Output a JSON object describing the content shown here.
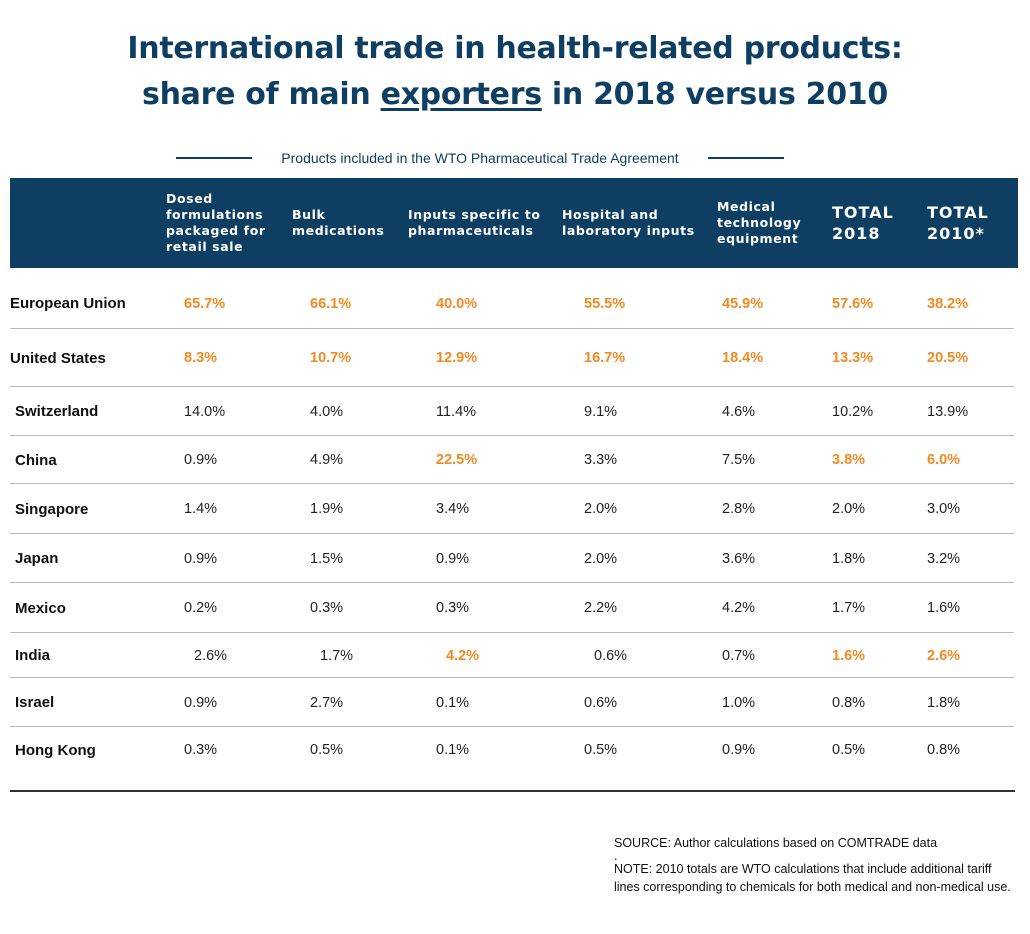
{
  "title": {
    "line1": "International trade in health-related products:",
    "line2_before": "share of main ",
    "line2_underlined": "exporters",
    "line2_after": " in 2018 versus 2010"
  },
  "subtitle": "Products included in the WTO Pharmaceutical Trade Agreement",
  "colors": {
    "header_bg": "#0e3f63",
    "highlight": "#f08a24",
    "title": "#0e3f63"
  },
  "chart_data": {
    "type": "table",
    "columns": [
      "Dosed\nformulations\npackaged for\nretail sale",
      "Bulk\nmedications",
      "Inputs specific to\npharmaceuticals",
      "Hospital and\nlaboratory inputs",
      "Medical\ntechnology\nequipment",
      "TOTAL\n2018",
      "TOTAL\n2010*"
    ],
    "rows": [
      {
        "country": "European Union",
        "values": [
          "65.7%",
          "66.1%",
          "40.0%",
          "55.5%",
          "45.9%",
          "57.6%",
          "38.2%"
        ],
        "highlight": [
          true,
          true,
          true,
          true,
          true,
          true,
          true
        ]
      },
      {
        "country": "United States",
        "values": [
          "8.3%",
          "10.7%",
          "12.9%",
          "16.7%",
          "18.4%",
          "13.3%",
          "20.5%"
        ],
        "highlight": [
          true,
          true,
          true,
          true,
          true,
          true,
          true
        ]
      },
      {
        "country": "Switzerland",
        "values": [
          "14.0%",
          "4.0%",
          "11.4%",
          "9.1%",
          "4.6%",
          "10.2%",
          "13.9%"
        ],
        "highlight": [
          false,
          false,
          false,
          false,
          false,
          false,
          false
        ]
      },
      {
        "country": "China",
        "values": [
          "0.9%",
          "4.9%",
          "22.5%",
          "3.3%",
          "7.5%",
          "3.8%",
          "6.0%"
        ],
        "highlight": [
          false,
          false,
          true,
          false,
          false,
          true,
          true
        ]
      },
      {
        "country": "Singapore",
        "values": [
          "1.4%",
          "1.9%",
          "3.4%",
          "2.0%",
          "2.8%",
          "2.0%",
          "3.0%"
        ],
        "highlight": [
          false,
          false,
          false,
          false,
          false,
          false,
          false
        ]
      },
      {
        "country": "Japan",
        "values": [
          "0.9%",
          "1.5%",
          "0.9%",
          "2.0%",
          "3.6%",
          "1.8%",
          "3.2%"
        ],
        "highlight": [
          false,
          false,
          false,
          false,
          false,
          false,
          false
        ]
      },
      {
        "country": "Mexico",
        "values": [
          "0.2%",
          "0.3%",
          "0.3%",
          "2.2%",
          "4.2%",
          "1.7%",
          "1.6%"
        ],
        "highlight": [
          false,
          false,
          false,
          false,
          false,
          false,
          false
        ]
      },
      {
        "country": "India",
        "values": [
          "2.6%",
          "1.7%",
          "4.2%",
          "0.6%",
          "0.7%",
          "1.6%",
          "2.6%"
        ],
        "highlight": [
          false,
          false,
          true,
          false,
          false,
          true,
          true
        ]
      },
      {
        "country": "Israel",
        "values": [
          "0.9%",
          "2.7%",
          "0.1%",
          "0.6%",
          "1.0%",
          "0.8%",
          "1.8%"
        ],
        "highlight": [
          false,
          false,
          false,
          false,
          false,
          false,
          false
        ]
      },
      {
        "country": "Hong Kong",
        "values": [
          "0.3%",
          "0.5%",
          "0.1%",
          "0.5%",
          "0.9%",
          "0.5%",
          "0.8%"
        ],
        "highlight": [
          false,
          false,
          false,
          false,
          false,
          false,
          false
        ]
      }
    ]
  },
  "notes": {
    "source": "SOURCE: Author calculations based on COMTRADE data",
    "dot": ".",
    "note": "NOTE: 2010 totals are WTO calculations that include additional tariff lines corresponding to chemicals for both medical and non-medical use."
  }
}
